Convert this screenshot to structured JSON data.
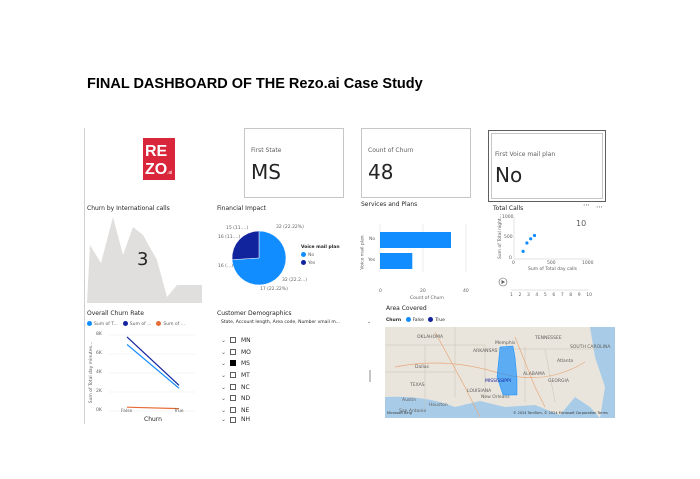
{
  "page_title": "FINAL DASHBOARD OF THE Rezo.ai Case Study",
  "logo": {
    "text": "RE ZO .ai",
    "color": "#d9263a"
  },
  "cards": [
    {
      "title": "First State",
      "value": "MS"
    },
    {
      "title": "Count of Churn",
      "value": "48"
    },
    {
      "title": "First Voice mail plan",
      "value": "No"
    }
  ],
  "intl_calls": {
    "title": "Churn by International calls",
    "value": "3"
  },
  "financial": {
    "title": "Financial Impact",
    "legend_title": "Voice mail plan",
    "legend": [
      {
        "name": "No",
        "color": "#118dff"
      },
      {
        "name": "Yes",
        "color": "#12239e"
      }
    ],
    "labels": [
      "15 (11....)",
      "16 (11....)",
      "16 (...)",
      "32 (22.22%)",
      "32 (22.2...)",
      "17 (22.22%)"
    ]
  },
  "services": {
    "title": "Services and Plans",
    "ylabel": "Voice mail plan",
    "xlabel": "Count of Churn",
    "color": "#118dff",
    "categories": [
      "No",
      "Yes"
    ]
  },
  "total_calls": {
    "title": "Total Calls",
    "ylabel": "Sum of Total night...",
    "xlabel": "Sum of Total day calls",
    "play_value": "10",
    "play_ticks": [
      "1",
      "2",
      "3",
      "4",
      "5",
      "6",
      "7",
      "8",
      "9",
      "10"
    ]
  },
  "churn_rate": {
    "title": "Overall Churn Rate",
    "legend": [
      {
        "name": "Sum of T...",
        "color": "#118dff"
      },
      {
        "name": "Sum of ...",
        "color": "#12239e"
      },
      {
        "name": "Sum of ...",
        "color": "#e66c37"
      }
    ],
    "ylabel": "Sum of Total day minutes...",
    "xlabel": "Churn"
  },
  "demographics": {
    "title": "Customer Demographics",
    "dropdown": "State, Account length, Area code, Number vmail m...",
    "items": [
      {
        "label": "MN",
        "checked": false
      },
      {
        "label": "MO",
        "checked": false
      },
      {
        "label": "MS",
        "checked": true
      },
      {
        "label": "MT",
        "checked": false
      },
      {
        "label": "NC",
        "checked": false
      },
      {
        "label": "ND",
        "checked": false
      },
      {
        "label": "NE",
        "checked": false
      },
      {
        "label": "NH",
        "checked": false
      }
    ]
  },
  "map": {
    "title": "Area Covered",
    "legend_title": "Churn",
    "legend": [
      {
        "name": "False",
        "color": "#118dff"
      },
      {
        "name": "True",
        "color": "#12239e"
      }
    ],
    "places": [
      "OKLAHOMA",
      "Memphis",
      "ARKANSAS",
      "TENNESSEE",
      "SOUTH CAROLINA",
      "Atlanta",
      "Dallas",
      "MISSISSIPPI",
      "ALABAMA",
      "GEORGIA",
      "TEXAS",
      "LOUISIANA",
      "Austin",
      "Houston",
      "New Orleans",
      "San Antonio"
    ],
    "attribution": "© 2024 TomTom, © 2024 Microsoft Corporation  Terms",
    "brand": "Microsoft Bing"
  },
  "chart_data": [
    {
      "type": "bar",
      "title": "Services and Plans",
      "categories": [
        "No",
        "Yes"
      ],
      "values": [
        33,
        15
      ],
      "xlabel": "Count of Churn",
      "ylabel": "Voice mail plan",
      "xlim": [
        0,
        40
      ],
      "ticks": [
        "0",
        "20",
        "40"
      ]
    },
    {
      "type": "pie",
      "title": "Financial Impact",
      "slices": [
        {
          "name": "No",
          "value": 74
        },
        {
          "name": "Yes",
          "value": 26
        }
      ]
    },
    {
      "type": "scatter",
      "title": "Total Calls",
      "x": [
        120,
        170,
        220,
        270
      ],
      "y": [
        180,
        380,
        480,
        560
      ],
      "xlim": [
        0,
        1000
      ],
      "ylim": [
        0,
        1000
      ],
      "xticks": [
        "0",
        "500",
        "1000"
      ],
      "yticks": [
        "0",
        "500",
        "1000"
      ]
    },
    {
      "type": "line",
      "title": "Overall Churn Rate",
      "categories": [
        "False",
        "True"
      ],
      "series": [
        {
          "name": "Sum of T...",
          "values": [
            7000,
            2400
          ]
        },
        {
          "name": "Sum of ...",
          "values": [
            7800,
            2700
          ]
        },
        {
          "name": "Sum of ...",
          "values": [
            400,
            250
          ]
        }
      ],
      "ylim": [
        0,
        8000
      ],
      "yticks": [
        "0K",
        "2K",
        "4K",
        "6K",
        "8K"
      ]
    }
  ]
}
